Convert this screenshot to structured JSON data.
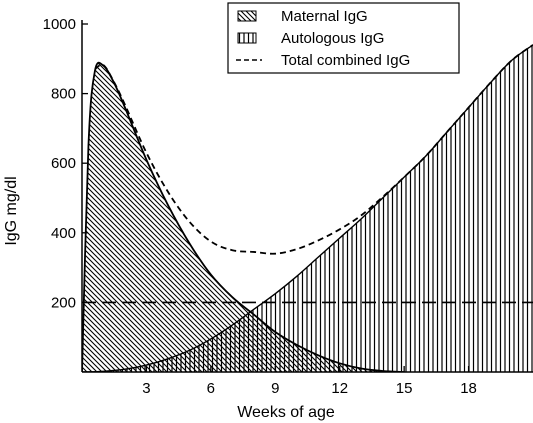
{
  "chart_data": {
    "type": "area",
    "title": "",
    "xlabel": "Weeks of age",
    "ylabel": "IgG mg/dl",
    "xlim": [
      0,
      21
    ],
    "ylim": [
      0,
      1000
    ],
    "x_ticks": [
      3,
      6,
      9,
      12,
      15,
      18
    ],
    "x_tick_labels": [
      "3",
      "6",
      "9",
      "12",
      "15",
      "18"
    ],
    "y_ticks": [
      200,
      400,
      600,
      800,
      1000
    ],
    "y_tick_labels": [
      "200",
      "400",
      "600",
      "800",
      "1000"
    ],
    "grid": false,
    "legend_position": "top-right",
    "reference_line": {
      "y": 200,
      "style": "long-dash"
    },
    "series": [
      {
        "name": "Maternal IgG",
        "style": "diagonal-hatch",
        "x": [
          0,
          0.3,
          0.6,
          1.0,
          1.5,
          2,
          3,
          4,
          5,
          6,
          7,
          8,
          9,
          10,
          11,
          12,
          13,
          14,
          15
        ],
        "values": [
          0,
          650,
          865,
          880,
          830,
          760,
          610,
          480,
          370,
          280,
          215,
          165,
          115,
          78,
          48,
          25,
          10,
          3,
          0
        ]
      },
      {
        "name": "Autologous IgG",
        "style": "vertical-hatch",
        "x": [
          0,
          1,
          2,
          3,
          4,
          5,
          6,
          7,
          8,
          9,
          10,
          11,
          12,
          13,
          14,
          15,
          16,
          17,
          18,
          19,
          20,
          21
        ],
        "values": [
          0,
          2,
          8,
          20,
          38,
          62,
          95,
          135,
          180,
          225,
          275,
          330,
          385,
          440,
          500,
          560,
          620,
          690,
          760,
          830,
          895,
          940
        ]
      },
      {
        "name": "Total combined IgG",
        "style": "short-dash",
        "x": [
          0.6,
          1.0,
          1.5,
          2,
          3,
          4,
          5,
          6,
          7,
          8,
          9,
          10,
          11,
          12,
          13,
          14,
          15,
          16,
          17,
          18,
          19,
          20,
          21
        ],
        "values": [
          870,
          882,
          832,
          768,
          630,
          518,
          432,
          375,
          350,
          345,
          340,
          353,
          378,
          410,
          450,
          503,
          560,
          620,
          690,
          760,
          830,
          895,
          940
        ]
      }
    ]
  },
  "legend": {
    "maternal_label": "Maternal IgG",
    "autologous_label": "Autologous IgG",
    "total_label": "Total combined IgG"
  }
}
